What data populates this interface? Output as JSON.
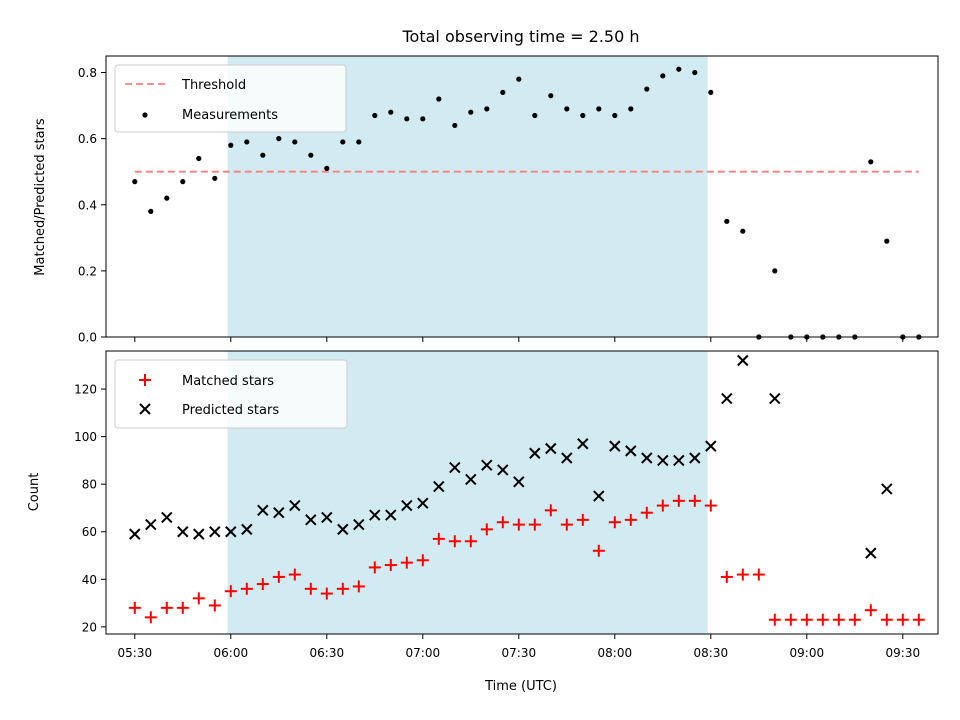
{
  "chart_data": {
    "type": "scatter",
    "title": "Total observing time = 2.50 h",
    "xlabel": "Time (UTC)",
    "x_ticks": [
      "05:30",
      "06:00",
      "06:30",
      "07:00",
      "07:30",
      "08:00",
      "08:30",
      "09:00",
      "09:30"
    ],
    "xlim": [
      "05:21",
      "09:41"
    ],
    "shaded_interval": {
      "from": "05:59",
      "to": "08:29",
      "color": "#add8e6"
    },
    "top": {
      "ylabel": "Matched/Predicted stars",
      "ylim": [
        0,
        0.85
      ],
      "y_ticks": [
        0.0,
        0.2,
        0.4,
        0.6,
        0.8
      ],
      "threshold": {
        "name": "Threshold",
        "value": 0.5,
        "from": "05:30",
        "to": "09:35",
        "color": "#ff7f7f"
      },
      "measurements": {
        "name": "Measurements",
        "color": "#000000",
        "x": [
          "05:30",
          "05:35",
          "05:40",
          "05:45",
          "05:50",
          "05:55",
          "06:00",
          "06:05",
          "06:10",
          "06:15",
          "06:20",
          "06:25",
          "06:30",
          "06:35",
          "06:40",
          "06:45",
          "06:50",
          "06:55",
          "07:00",
          "07:05",
          "07:10",
          "07:15",
          "07:20",
          "07:25",
          "07:30",
          "07:35",
          "07:40",
          "07:45",
          "07:50",
          "07:55",
          "08:00",
          "08:05",
          "08:10",
          "08:15",
          "08:20",
          "08:25",
          "08:30",
          "08:35",
          "08:40",
          "08:45",
          "08:50",
          "08:55",
          "09:00",
          "09:05",
          "09:10",
          "09:15",
          "09:20",
          "09:25",
          "09:30",
          "09:35"
        ],
        "y": [
          0.47,
          0.38,
          0.42,
          0.47,
          0.54,
          0.48,
          0.58,
          0.59,
          0.55,
          0.6,
          0.59,
          0.55,
          0.51,
          0.59,
          0.59,
          0.67,
          0.68,
          0.66,
          0.66,
          0.72,
          0.64,
          0.68,
          0.69,
          0.74,
          0.78,
          0.67,
          0.73,
          0.69,
          0.67,
          0.69,
          0.67,
          0.69,
          0.75,
          0.79,
          0.81,
          0.8,
          0.74,
          0.35,
          0.32,
          0.0,
          0.2,
          0.0,
          0.0,
          0.0,
          0.0,
          0.0,
          0.53,
          0.29,
          0.0,
          0.0
        ]
      }
    },
    "bottom": {
      "ylabel": "Count",
      "ylim": [
        17,
        136
      ],
      "y_ticks": [
        20,
        40,
        60,
        80,
        100,
        120
      ],
      "series": [
        {
          "name": "Matched stars",
          "marker": "+",
          "color": "#ff0000",
          "x": [
            "05:30",
            "05:35",
            "05:40",
            "05:45",
            "05:50",
            "05:55",
            "06:00",
            "06:05",
            "06:10",
            "06:15",
            "06:20",
            "06:25",
            "06:30",
            "06:35",
            "06:40",
            "06:45",
            "06:50",
            "06:55",
            "07:00",
            "07:05",
            "07:10",
            "07:15",
            "07:20",
            "07:25",
            "07:30",
            "07:35",
            "07:40",
            "07:45",
            "07:50",
            "07:55",
            "08:00",
            "08:05",
            "08:10",
            "08:15",
            "08:20",
            "08:25",
            "08:30",
            "08:35",
            "08:40",
            "08:45",
            "08:50",
            "08:55",
            "09:00",
            "09:05",
            "09:10",
            "09:15",
            "09:20",
            "09:25",
            "09:30",
            "09:35"
          ],
          "y": [
            28,
            24,
            28,
            28,
            32,
            29,
            35,
            36,
            38,
            41,
            42,
            36,
            34,
            36,
            37,
            45,
            46,
            47,
            48,
            57,
            56,
            56,
            61,
            64,
            63,
            63,
            69,
            63,
            65,
            52,
            64,
            65,
            68,
            71,
            73,
            73,
            71,
            41,
            42,
            42,
            23,
            23,
            23,
            23,
            23,
            23,
            27,
            23,
            23,
            23
          ]
        },
        {
          "name": "Predicted stars",
          "marker": "x",
          "color": "#000000",
          "x": [
            "05:30",
            "05:35",
            "05:40",
            "05:45",
            "05:50",
            "05:55",
            "06:00",
            "06:05",
            "06:10",
            "06:15",
            "06:20",
            "06:25",
            "06:30",
            "06:35",
            "06:40",
            "06:45",
            "06:50",
            "06:55",
            "07:00",
            "07:05",
            "07:10",
            "07:15",
            "07:20",
            "07:25",
            "07:30",
            "07:35",
            "07:40",
            "07:45",
            "07:50",
            "07:55",
            "08:00",
            "08:05",
            "08:10",
            "08:15",
            "08:20",
            "08:25",
            "08:30",
            "08:35",
            "08:40",
            "08:50",
            "09:20",
            "09:25"
          ],
          "y": [
            59,
            63,
            66,
            60,
            59,
            60,
            60,
            61,
            69,
            68,
            71,
            65,
            66,
            61,
            63,
            67,
            67,
            71,
            72,
            79,
            87,
            82,
            88,
            86,
            81,
            93,
            95,
            91,
            97,
            75,
            96,
            94,
            91,
            90,
            90,
            91,
            96,
            116,
            132,
            116,
            51,
            78
          ]
        }
      ]
    }
  }
}
